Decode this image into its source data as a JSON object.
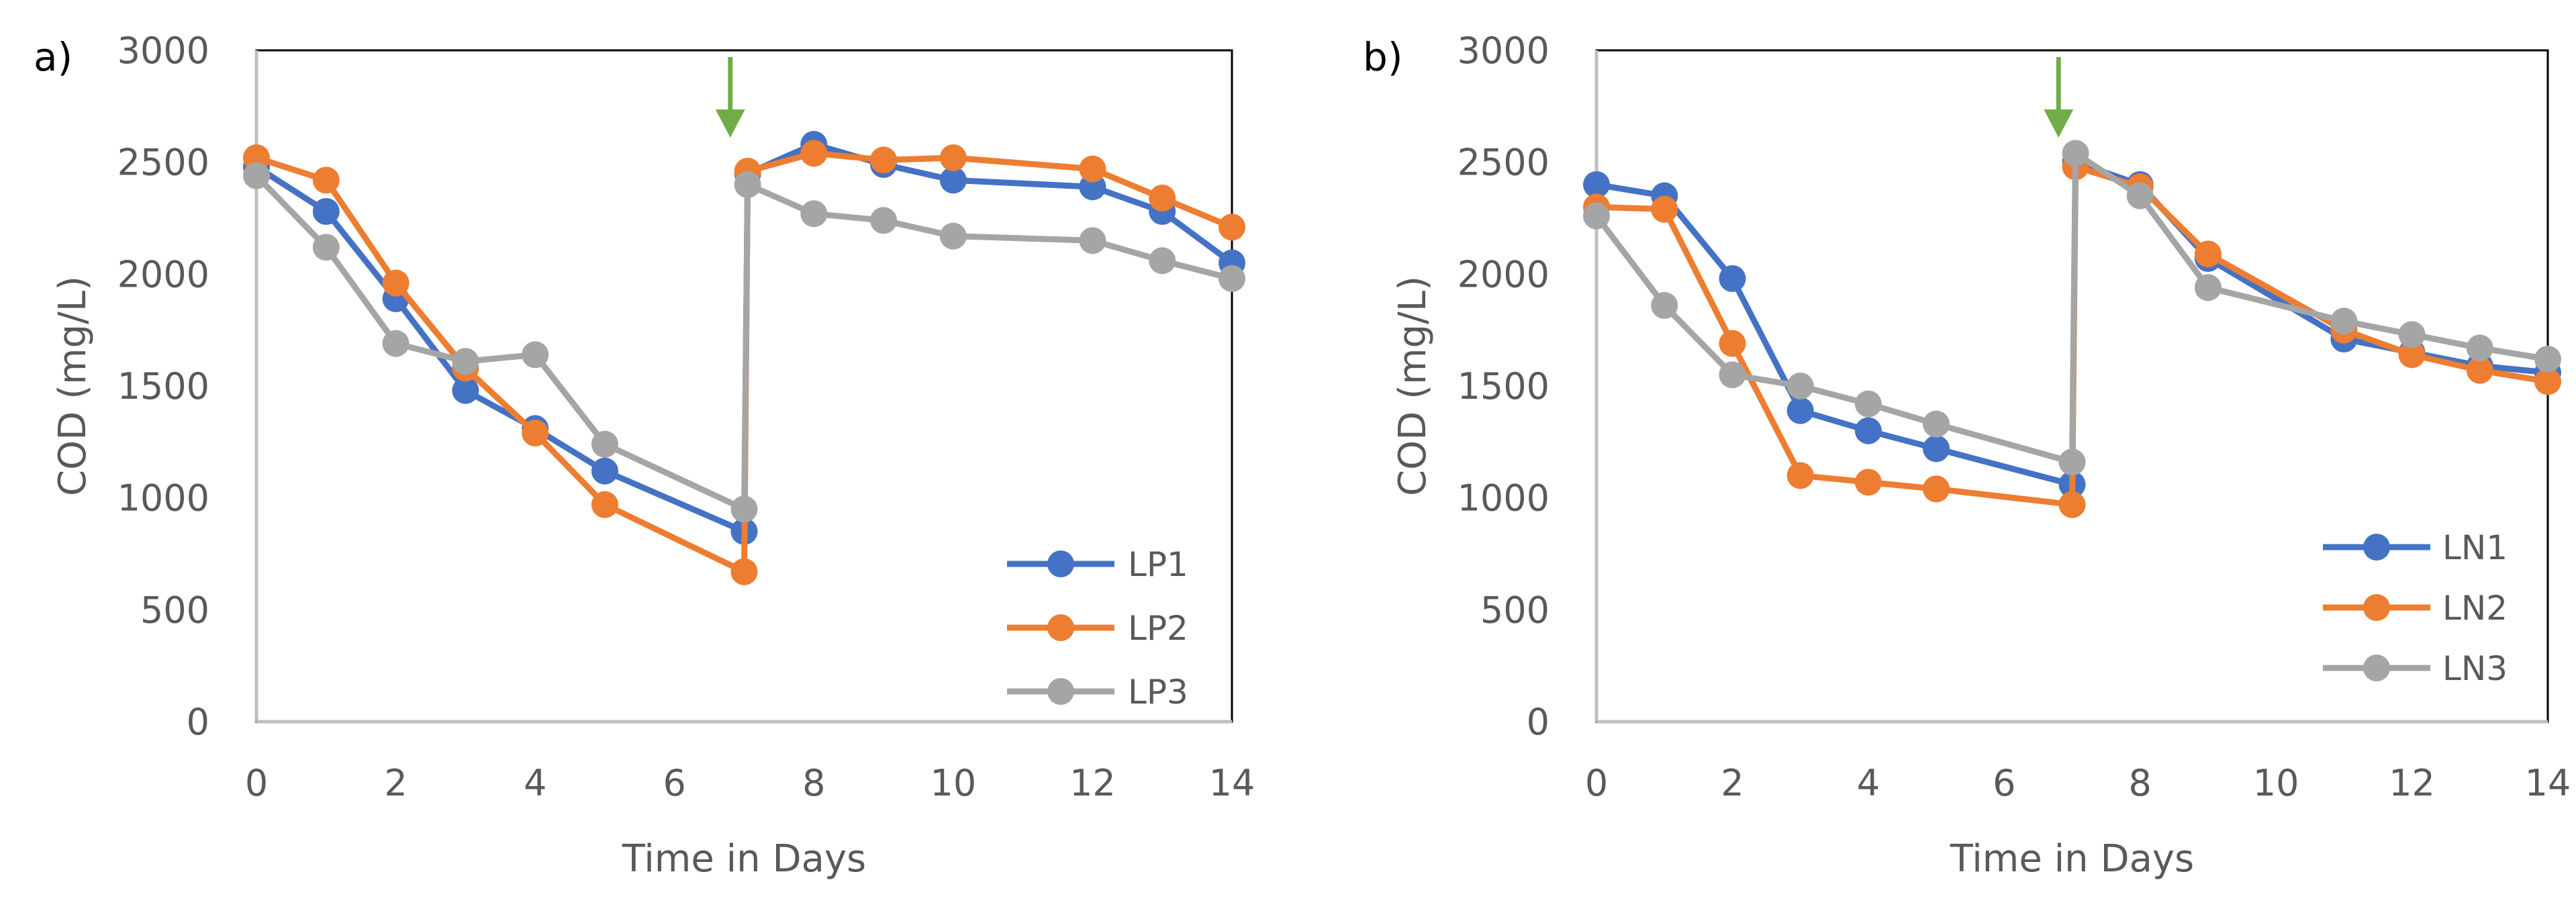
{
  "chart_data": [
    {
      "type": "line",
      "panel_label": "a)",
      "title": "",
      "xlabel": "Time in Days",
      "ylabel": "COD (mg/L)",
      "xlim": [
        0,
        14
      ],
      "ylim": [
        0,
        3000
      ],
      "x_ticks": [
        0,
        2,
        4,
        6,
        8,
        10,
        12,
        14
      ],
      "y_ticks": [
        0,
        500,
        1000,
        1500,
        2000,
        2500,
        3000
      ],
      "grid": false,
      "legend_position": "bottom-right",
      "annotations": [
        {
          "type": "arrow",
          "x": 6.8,
          "direction": "down",
          "color": "#70AD47"
        }
      ],
      "series": [
        {
          "name": "LP1",
          "color": "#4472C4",
          "x": [
            0,
            1,
            2,
            3,
            4,
            5,
            7,
            7.05,
            8,
            9,
            10,
            12,
            13,
            14
          ],
          "y": [
            2480,
            2280,
            1890,
            1480,
            1310,
            1120,
            850,
            2450,
            2580,
            2490,
            2420,
            2390,
            2280,
            2050
          ]
        },
        {
          "name": "LP2",
          "color": "#ED7D31",
          "x": [
            0,
            1,
            2,
            3,
            4,
            5,
            7,
            7.05,
            8,
            9,
            10,
            12,
            13,
            14
          ],
          "y": [
            2520,
            2420,
            1960,
            1580,
            1290,
            970,
            670,
            2460,
            2540,
            2510,
            2520,
            2470,
            2340,
            2210
          ]
        },
        {
          "name": "LP3",
          "color": "#A5A5A5",
          "x": [
            0,
            1,
            2,
            3,
            4,
            5,
            7,
            7.05,
            8,
            9,
            10,
            12,
            13,
            14
          ],
          "y": [
            2440,
            2120,
            1690,
            1610,
            1640,
            1240,
            950,
            2400,
            2270,
            2240,
            2170,
            2150,
            2060,
            1980
          ]
        }
      ]
    },
    {
      "type": "line",
      "panel_label": "b)",
      "title": "",
      "xlabel": "Time in Days",
      "ylabel": "COD (mg/L)",
      "xlim": [
        0,
        14
      ],
      "ylim": [
        0,
        3000
      ],
      "x_ticks": [
        0,
        2,
        4,
        6,
        8,
        10,
        12,
        14
      ],
      "y_ticks": [
        0,
        500,
        1000,
        1500,
        2000,
        2500,
        3000
      ],
      "grid": false,
      "legend_position": "bottom-right",
      "annotations": [
        {
          "type": "arrow",
          "x": 6.8,
          "direction": "down",
          "color": "#70AD47"
        }
      ],
      "series": [
        {
          "name": "LN1",
          "color": "#4472C4",
          "x": [
            0,
            1,
            2,
            3,
            4,
            5,
            7,
            7.05,
            8,
            9,
            11,
            12,
            13,
            14
          ],
          "y": [
            2400,
            2350,
            1980,
            1390,
            1300,
            1220,
            1060,
            2500,
            2400,
            2070,
            1710,
            1650,
            1590,
            1560
          ]
        },
        {
          "name": "LN2",
          "color": "#ED7D31",
          "x": [
            0,
            1,
            2,
            3,
            4,
            5,
            7,
            7.05,
            8,
            9,
            11,
            12,
            13,
            14
          ],
          "y": [
            2300,
            2290,
            1690,
            1100,
            1070,
            1040,
            970,
            2480,
            2390,
            2090,
            1750,
            1640,
            1570,
            1520
          ]
        },
        {
          "name": "LN3",
          "color": "#A5A5A5",
          "x": [
            0,
            1,
            2,
            3,
            4,
            5,
            7,
            7.05,
            8,
            9,
            11,
            12,
            13,
            14
          ],
          "y": [
            2260,
            1860,
            1550,
            1500,
            1420,
            1330,
            1160,
            2540,
            2350,
            1940,
            1790,
            1730,
            1670,
            1620
          ]
        }
      ]
    }
  ]
}
